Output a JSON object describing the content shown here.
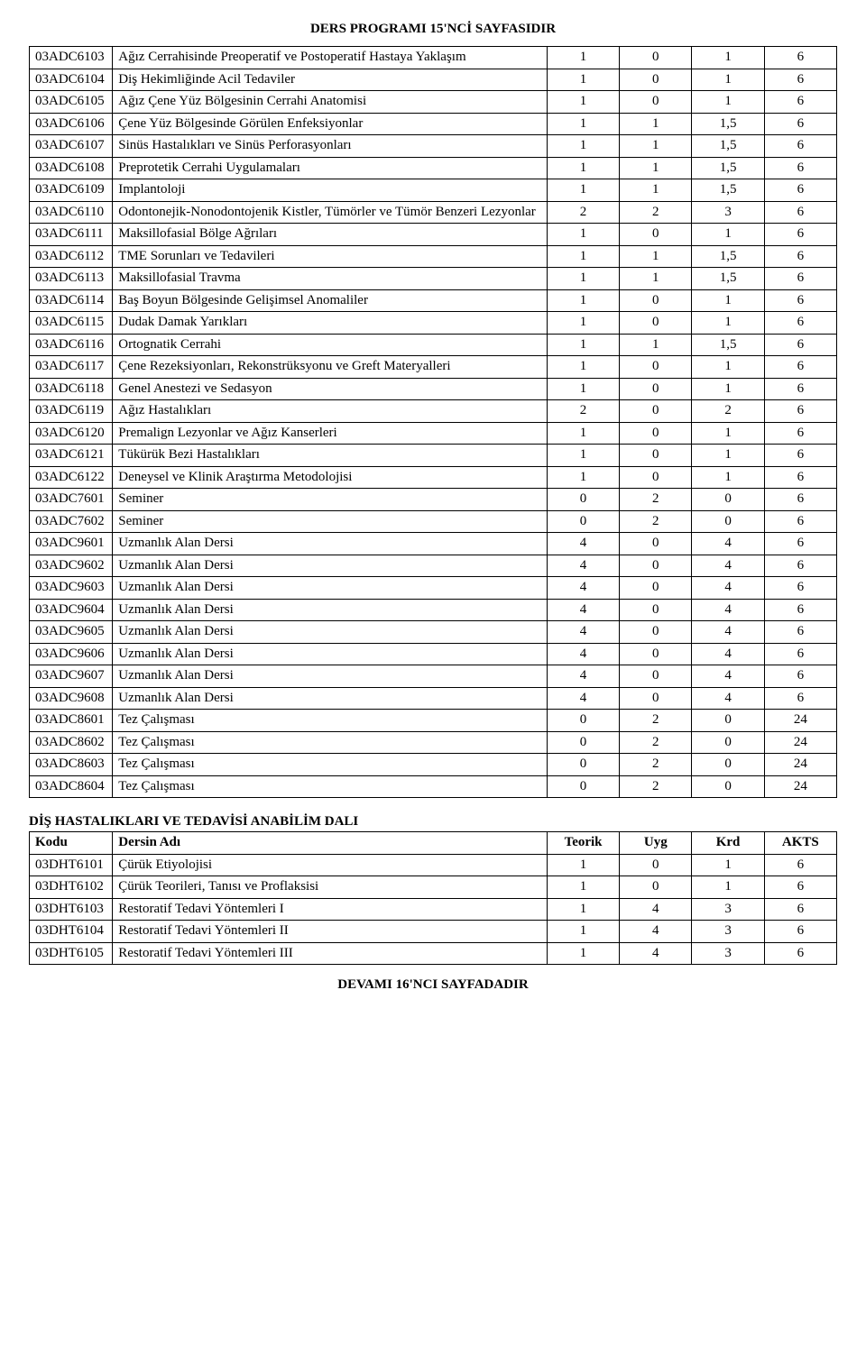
{
  "page_title": "DERS PROGRAMI 15'NCİ SAYFASIDIR",
  "table1": {
    "col_widths": {
      "code": 92,
      "name": 480,
      "num": 80
    },
    "rows": [
      {
        "code": "03ADC6103",
        "name": "Ağız Cerrahisinde Preoperatif ve Postoperatif Hastaya Yaklaşım",
        "c1": "1",
        "c2": "0",
        "c3": "1",
        "c4": "6"
      },
      {
        "code": "03ADC6104",
        "name": "Diş Hekimliğinde Acil Tedaviler",
        "c1": "1",
        "c2": "0",
        "c3": "1",
        "c4": "6"
      },
      {
        "code": "03ADC6105",
        "name": "Ağız Çene Yüz Bölgesinin Cerrahi Anatomisi",
        "c1": "1",
        "c2": "0",
        "c3": "1",
        "c4": "6"
      },
      {
        "code": "03ADC6106",
        "name": "Çene Yüz Bölgesinde Görülen Enfeksiyonlar",
        "c1": "1",
        "c2": "1",
        "c3": "1,5",
        "c4": "6"
      },
      {
        "code": "03ADC6107",
        "name": "Sinüs Hastalıkları ve Sinüs Perforasyonları",
        "c1": "1",
        "c2": "1",
        "c3": "1,5",
        "c4": "6"
      },
      {
        "code": "03ADC6108",
        "name": "Preprotetik Cerrahi Uygulamaları",
        "c1": "1",
        "c2": "1",
        "c3": "1,5",
        "c4": "6"
      },
      {
        "code": "03ADC6109",
        "name": "Implantoloji",
        "c1": "1",
        "c2": "1",
        "c3": "1,5",
        "c4": "6"
      },
      {
        "code": "03ADC6110",
        "name": "Odontonejik-Nonodontojenik Kistler, Tümörler ve Tümör Benzeri Lezyonlar",
        "c1": "2",
        "c2": "2",
        "c3": "3",
        "c4": "6"
      },
      {
        "code": "03ADC6111",
        "name": "Maksillofasial Bölge Ağrıları",
        "c1": "1",
        "c2": "0",
        "c3": "1",
        "c4": "6"
      },
      {
        "code": "03ADC6112",
        "name": "TME Sorunları ve Tedavileri",
        "c1": "1",
        "c2": "1",
        "c3": "1,5",
        "c4": "6"
      },
      {
        "code": "03ADC6113",
        "name": "Maksillofasial Travma",
        "c1": "1",
        "c2": "1",
        "c3": "1,5",
        "c4": "6"
      },
      {
        "code": "03ADC6114",
        "name": "Baş Boyun Bölgesinde Gelişimsel Anomaliler",
        "c1": "1",
        "c2": "0",
        "c3": "1",
        "c4": "6"
      },
      {
        "code": "03ADC6115",
        "name": "Dudak Damak Yarıkları",
        "c1": "1",
        "c2": "0",
        "c3": "1",
        "c4": "6"
      },
      {
        "code": "03ADC6116",
        "name": "Ortognatik Cerrahi",
        "c1": "1",
        "c2": "1",
        "c3": "1,5",
        "c4": "6"
      },
      {
        "code": "03ADC6117",
        "name": "Çene Rezeksiyonları, Rekonstrüksyonu ve Greft Materyalleri",
        "c1": "1",
        "c2": "0",
        "c3": "1",
        "c4": "6"
      },
      {
        "code": "03ADC6118",
        "name": "Genel Anestezi ve Sedasyon",
        "c1": "1",
        "c2": "0",
        "c3": "1",
        "c4": "6"
      },
      {
        "code": "03ADC6119",
        "name": "Ağız Hastalıkları",
        "c1": "2",
        "c2": "0",
        "c3": "2",
        "c4": "6"
      },
      {
        "code": "03ADC6120",
        "name": "Premalign Lezyonlar ve Ağız Kanserleri",
        "c1": "1",
        "c2": "0",
        "c3": "1",
        "c4": "6"
      },
      {
        "code": "03ADC6121",
        "name": "Tükürük Bezi Hastalıkları",
        "c1": "1",
        "c2": "0",
        "c3": "1",
        "c4": "6"
      },
      {
        "code": "03ADC6122",
        "name": "Deneysel ve Klinik Araştırma Metodolojisi",
        "c1": "1",
        "c2": "0",
        "c3": "1",
        "c4": "6"
      },
      {
        "code": "03ADC7601",
        "name": "Seminer",
        "c1": "0",
        "c2": "2",
        "c3": "0",
        "c4": "6"
      },
      {
        "code": "03ADC7602",
        "name": "Seminer",
        "c1": "0",
        "c2": "2",
        "c3": "0",
        "c4": "6"
      },
      {
        "code": "03ADC9601",
        "name": "Uzmanlık Alan Dersi",
        "c1": "4",
        "c2": "0",
        "c3": "4",
        "c4": "6"
      },
      {
        "code": "03ADC9602",
        "name": "Uzmanlık Alan Dersi",
        "c1": "4",
        "c2": "0",
        "c3": "4",
        "c4": "6"
      },
      {
        "code": "03ADC9603",
        "name": "Uzmanlık Alan Dersi",
        "c1": "4",
        "c2": "0",
        "c3": "4",
        "c4": "6"
      },
      {
        "code": "03ADC9604",
        "name": "Uzmanlık Alan Dersi",
        "c1": "4",
        "c2": "0",
        "c3": "4",
        "c4": "6"
      },
      {
        "code": "03ADC9605",
        "name": "Uzmanlık Alan Dersi",
        "c1": "4",
        "c2": "0",
        "c3": "4",
        "c4": "6"
      },
      {
        "code": "03ADC9606",
        "name": "Uzmanlık Alan Dersi",
        "c1": "4",
        "c2": "0",
        "c3": "4",
        "c4": "6"
      },
      {
        "code": "03ADC9607",
        "name": "Uzmanlık Alan Dersi",
        "c1": "4",
        "c2": "0",
        "c3": "4",
        "c4": "6"
      },
      {
        "code": "03ADC9608",
        "name": "Uzmanlık Alan Dersi",
        "c1": "4",
        "c2": "0",
        "c3": "4",
        "c4": "6"
      },
      {
        "code": "03ADC8601",
        "name": "Tez Çalışması",
        "c1": "0",
        "c2": "2",
        "c3": "0",
        "c4": "24"
      },
      {
        "code": "03ADC8602",
        "name": "Tez Çalışması",
        "c1": "0",
        "c2": "2",
        "c3": "0",
        "c4": "24"
      },
      {
        "code": "03ADC8603",
        "name": "Tez Çalışması",
        "c1": "0",
        "c2": "2",
        "c3": "0",
        "c4": "24"
      },
      {
        "code": "03ADC8604",
        "name": "Tez Çalışması",
        "c1": "0",
        "c2": "2",
        "c3": "0",
        "c4": "24"
      }
    ]
  },
  "section2_title": "DİŞ HASTALIKLARI VE TEDAVİSİ ANABİLİM DALI",
  "table2": {
    "header": {
      "code": "Kodu",
      "name": "Dersin Adı",
      "c1": "Teorik",
      "c2": "Uyg",
      "c3": "Krd",
      "c4": "AKTS"
    },
    "rows": [
      {
        "code": "03DHT6101",
        "name": "Çürük Etiyolojisi",
        "c1": "1",
        "c2": "0",
        "c3": "1",
        "c4": "6"
      },
      {
        "code": "03DHT6102",
        "name": "Çürük Teorileri, Tanısı ve Proflaksisi",
        "c1": "1",
        "c2": "0",
        "c3": "1",
        "c4": "6"
      },
      {
        "code": "03DHT6103",
        "name": "Restoratif Tedavi Yöntemleri I",
        "c1": "1",
        "c2": "4",
        "c3": "3",
        "c4": "6"
      },
      {
        "code": "03DHT6104",
        "name": "Restoratif Tedavi Yöntemleri II",
        "c1": "1",
        "c2": "4",
        "c3": "3",
        "c4": "6"
      },
      {
        "code": "03DHT6105",
        "name": "Restoratif Tedavi Yöntemleri III",
        "c1": "1",
        "c2": "4",
        "c3": "3",
        "c4": "6"
      }
    ]
  },
  "footer": "DEVAMI 16'NCI SAYFADADIR"
}
